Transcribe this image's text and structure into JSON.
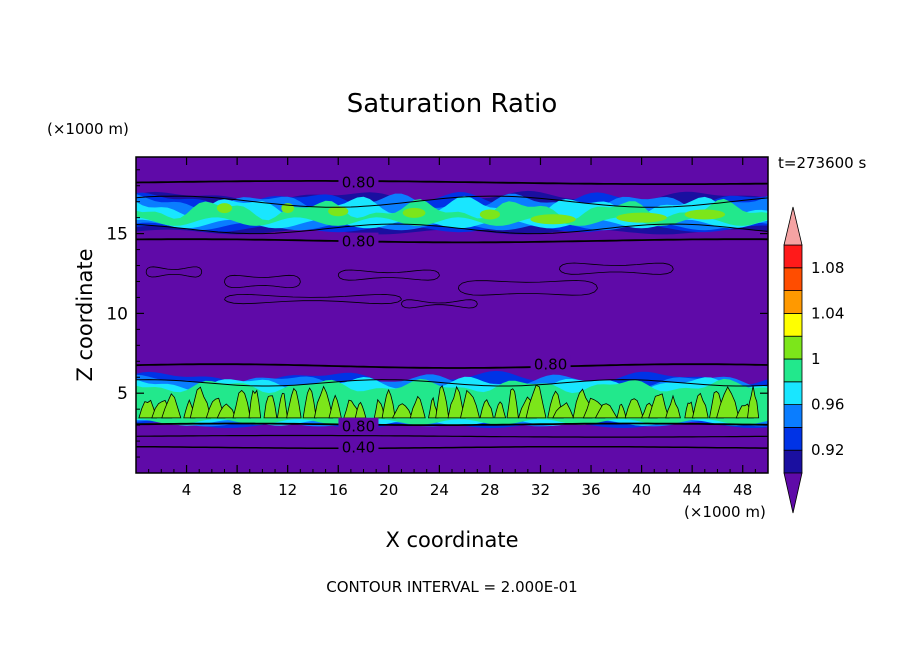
{
  "chart_data": {
    "type": "contour",
    "title": "Saturation Ratio",
    "xlabel": "X coordinate",
    "ylabel": "Z coordinate",
    "x_units": "(×1000 m)",
    "y_units": "(×1000 m)",
    "time_label": "t=273600 s",
    "footer": "CONTOUR INTERVAL = 2.000E-01",
    "xlim": [
      0,
      50
    ],
    "ylim": [
      0,
      19.8
    ],
    "x_ticks": [
      4,
      8,
      12,
      16,
      20,
      24,
      28,
      32,
      36,
      40,
      44,
      48
    ],
    "y_ticks": [
      5,
      10,
      15
    ],
    "contour_labels": [
      {
        "text": "0.80",
        "x": 17.6,
        "y": 18.2
      },
      {
        "text": "0.80",
        "x": 17.6,
        "y": 14.5
      },
      {
        "text": "0.80",
        "x": 32.8,
        "y": 6.8
      },
      {
        "text": "0.80",
        "x": 17.6,
        "y": 2.9
      },
      {
        "text": "0.40",
        "x": 17.6,
        "y": 1.6
      }
    ],
    "colorbar": {
      "labels": [
        "0.92",
        "0.96",
        "1",
        "1.04",
        "1.08"
      ],
      "levels": [
        0.9,
        0.92,
        0.94,
        0.96,
        0.98,
        1.0,
        1.02,
        1.04,
        1.06,
        1.08,
        1.1
      ],
      "colors": [
        "#5f0aa8",
        "#1a0fa0",
        "#0033e6",
        "#0a7dff",
        "#19e6ff",
        "#22e88c",
        "#7ce61a",
        "#ffff00",
        "#ff9900",
        "#ff4d00",
        "#ff1a1a",
        "#f5a3a3"
      ],
      "over_color": "#f5a3a3",
      "under_color": "#5f0aa8"
    },
    "field": {
      "background": "#5f0aa8",
      "upper_moist_layer_z": [
        15.3,
        17.0
      ],
      "lower_moist_layer_z": [
        3.1,
        5.6
      ]
    }
  }
}
